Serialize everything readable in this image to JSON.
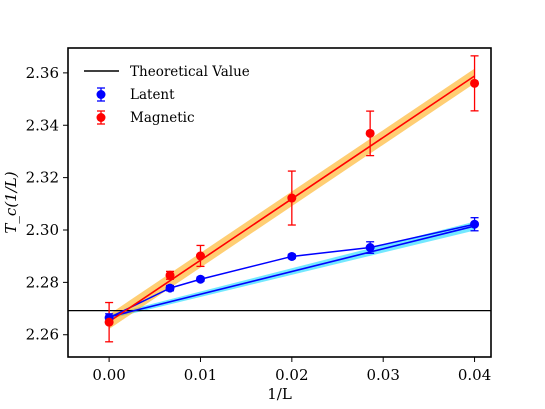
{
  "chart_data": {
    "type": "scatter",
    "xlabel": "1/L",
    "ylabel": "T_c(1/L)",
    "xlim": [
      -0.0045,
      0.0418
    ],
    "ylim": [
      2.2515,
      2.3695
    ],
    "xticks": [
      0.0,
      0.01,
      0.02,
      0.03,
      0.04
    ],
    "xtick_labels": [
      "0.00",
      "0.01",
      "0.02",
      "0.03",
      "0.04"
    ],
    "yticks": [
      2.26,
      2.28,
      2.3,
      2.32,
      2.34,
      2.36
    ],
    "ytick_labels": [
      "2.26",
      "2.28",
      "2.30",
      "2.32",
      "2.34",
      "2.36"
    ],
    "grid": false,
    "legend_position": "top-left",
    "theoretical_value": {
      "name": "Theoretical Value",
      "y": 2.2692,
      "color": "#000000"
    },
    "series": [
      {
        "name": "Latent",
        "color": "#0000ff",
        "band_color": "#00d5ff",
        "x": [
          0.0,
          0.006667,
          0.01,
          0.02,
          0.028571,
          0.04
        ],
        "y": [
          2.2665,
          2.2778,
          2.2812,
          2.2899,
          2.2933,
          2.3022
        ],
        "yerr": [
          0.0015,
          0.001,
          0.0008,
          0.0008,
          0.0022,
          0.0025
        ],
        "fit": {
          "x": [
            0.0,
            0.04
          ],
          "y": [
            2.2668,
            2.3015
          ]
        },
        "band": {
          "x": [
            0.0,
            0.04
          ],
          "low": [
            2.266,
            2.2998
          ],
          "high": [
            2.2676,
            2.3032
          ]
        }
      },
      {
        "name": "Magnetic",
        "color": "#ff0000",
        "band_color": "#ffa500",
        "x": [
          0.0,
          0.006667,
          0.01,
          0.02,
          0.028571,
          0.04
        ],
        "y": [
          2.2648,
          2.2827,
          2.2901,
          2.3122,
          2.3369,
          2.356
        ],
        "yerr": [
          0.0075,
          0.0015,
          0.004,
          0.0103,
          0.0085,
          0.0105
        ],
        "fit": {
          "x": [
            0.0,
            0.04
          ],
          "y": [
            2.265,
            2.3588
          ]
        },
        "band": {
          "x": [
            0.0,
            0.04
          ],
          "low": [
            2.2622,
            2.356
          ],
          "high": [
            2.2678,
            2.3616
          ]
        }
      }
    ]
  }
}
